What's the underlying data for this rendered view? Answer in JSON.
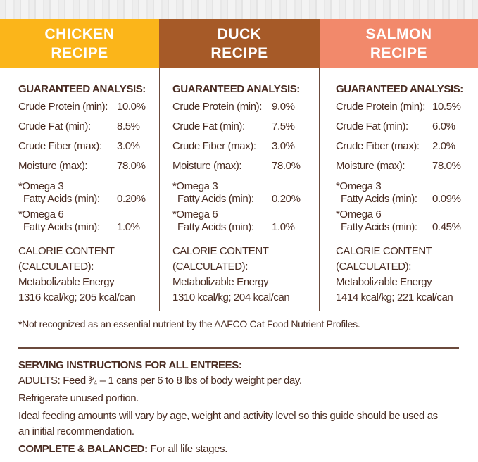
{
  "colors": {
    "chicken": "#fbb51a",
    "duck": "#a65a28",
    "salmon": "#f2896b",
    "text": "#4a2c22"
  },
  "recipes": [
    {
      "name_line1": "CHICKEN",
      "name_line2": "RECIPE",
      "analysis_title": "GUARANTEED ANALYSIS:",
      "protein_label": "Crude Protein (min):",
      "protein": "10.0%",
      "fat_label": "Crude Fat (min):",
      "fat": "8.5%",
      "fiber_label": "Crude Fiber (max):",
      "fiber": "3.0%",
      "moisture_label": "Moisture (max):",
      "moisture": "78.0%",
      "omega3_l1": "*Omega 3",
      "omega3_l2": "Fatty Acids (min):",
      "omega3": "0.20%",
      "omega6_l1": "*Omega 6",
      "omega6_l2": "Fatty Acids (min):",
      "omega6": "1.0%",
      "cal1": "CALORIE CONTENT",
      "cal2": "(CALCULATED):",
      "cal3": "Metabolizable Energy",
      "cal4": "1316 kcal/kg; 205 kcal/can"
    },
    {
      "name_line1": "DUCK",
      "name_line2": "RECIPE",
      "analysis_title": "GUARANTEED ANALYSIS:",
      "protein_label": "Crude Protein (min):",
      "protein": "9.0%",
      "fat_label": "Crude Fat (min):",
      "fat": "7.5%",
      "fiber_label": "Crude Fiber (max):",
      "fiber": "3.0%",
      "moisture_label": "Moisture (max):",
      "moisture": "78.0%",
      "omega3_l1": "*Omega 3",
      "omega3_l2": "Fatty Acids (min):",
      "omega3": "0.20%",
      "omega6_l1": "*Omega 6",
      "omega6_l2": "Fatty Acids (min):",
      "omega6": "1.0%",
      "cal1": "CALORIE CONTENT",
      "cal2": "(CALCULATED):",
      "cal3": "Metabolizable Energy",
      "cal4": "1310 kcal/kg; 204 kcal/can"
    },
    {
      "name_line1": "SALMON",
      "name_line2": "RECIPE",
      "analysis_title": "GUARANTEED ANALYSIS:",
      "protein_label": "Crude Protein (min):",
      "protein": "10.5%",
      "fat_label": "Crude Fat (min):",
      "fat": "6.0%",
      "fiber_label": "Crude Fiber (max):",
      "fiber": "2.0%",
      "moisture_label": "Moisture (max):",
      "moisture": "78.0%",
      "omega3_l1": "*Omega 3",
      "omega3_l2": "Fatty Acids (min):",
      "omega3": "0.09%",
      "omega6_l1": "*Omega 6",
      "omega6_l2": "Fatty Acids (min):",
      "omega6": "0.45%",
      "cal1": "CALORIE CONTENT",
      "cal2": "(CALCULATED):",
      "cal3": "Metabolizable Energy",
      "cal4": "1414 kcal/kg; 221 kcal/can"
    }
  ],
  "footnote": "*Not recognized as an essential nutrient by the AAFCO Cat Food Nutrient Profiles.",
  "serving": {
    "title": "SERVING INSTRUCTIONS FOR ALL ENTREES:",
    "adults": "ADULTS: Feed ³⁄₄ – 1 cans per 6 to 8 lbs of body weight per day.",
    "refrigerate": "Refrigerate unused portion.",
    "ideal": "Ideal feeding amounts will vary by age, weight and activity level so this guide should be used as an initial recommendation.",
    "complete_label": "COMPLETE & BALANCED:",
    "complete_text": " For all life stages."
  }
}
